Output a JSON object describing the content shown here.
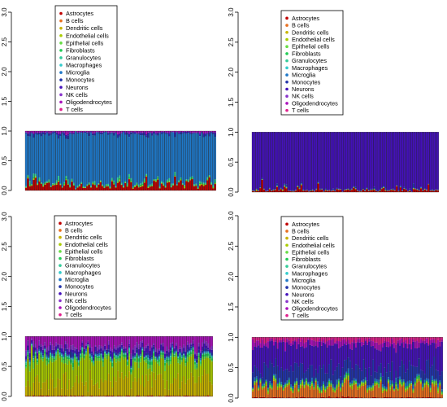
{
  "figure": {
    "cell_types": [
      "Astrocytes",
      "B cells",
      "Dendritic cells",
      "Endothelial cells",
      "Epithelial cells",
      "Fibroblasts",
      "Granulocytes",
      "Macrophages",
      "Microglia",
      "Monocytes",
      "Neurons",
      "NK cells",
      "Oligodendrocytes",
      "T cells"
    ],
    "colors": [
      "#C00000",
      "#E87020",
      "#C8B400",
      "#AACC00",
      "#66DD44",
      "#22CC55",
      "#33CC99",
      "#33CCCC",
      "#1F78C8",
      "#2233AA",
      "#4411BB",
      "#8833CC",
      "#AA11BB",
      "#E0208C"
    ],
    "y_ticks": [
      "0.0",
      "0.5",
      "1.0",
      "1.5",
      "2.0",
      "2.5",
      "3.0"
    ]
  },
  "chart_data": [
    {
      "type": "bar",
      "stacked": true,
      "n_bars": 100,
      "ylim": [
        0,
        3
      ],
      "y_ticks": [
        0,
        0.5,
        1.0,
        1.5,
        2.0,
        2.5,
        3.0
      ],
      "legend": "top-center",
      "series_mean_fractions": {
        "Astrocytes": 0.09,
        "Endothelial cells": 0.01,
        "Fibroblasts": 0.01,
        "Granulocytes": 0.02,
        "Microglia": 0.82,
        "Monocytes": 0.02,
        "Neurons": 0.01,
        "Oligodendrocytes": 0.02
      }
    },
    {
      "type": "bar",
      "stacked": true,
      "n_bars": 100,
      "ylim": [
        0,
        3
      ],
      "y_ticks": [
        0,
        0.5,
        1.0,
        1.5,
        2.0,
        2.5,
        3.0
      ],
      "legend": "top-center",
      "series_mean_fractions": {
        "Astrocytes": 0.03,
        "Endothelial cells": 0.005,
        "Microglia": 0.005,
        "Monocytes": 0.01,
        "Neurons": 0.95
      }
    },
    {
      "type": "bar",
      "stacked": true,
      "n_bars": 100,
      "ylim": [
        0,
        3
      ],
      "y_ticks": [
        0,
        0.5,
        1.0,
        1.5,
        2.0,
        2.5,
        3.0
      ],
      "legend": "top-center",
      "series_mean_fractions": {
        "Astrocytes": 0.01,
        "Dendritic cells": 0.27,
        "Endothelial cells": 0.3,
        "Epithelial cells": 0.05,
        "Fibroblasts": 0.03,
        "Granulocytes": 0.02,
        "Macrophages": 0.01,
        "Microglia": 0.02,
        "Monocytes": 0.03,
        "Neurons": 0.06,
        "NK cells": 0.05,
        "Oligodendrocytes": 0.15
      }
    },
    {
      "type": "bar",
      "stacked": true,
      "n_bars": 100,
      "ylim": [
        0,
        3
      ],
      "y_ticks": [
        0,
        0.5,
        1.0,
        1.5,
        2.0,
        2.5,
        3.0
      ],
      "legend": "top-center",
      "series_mean_fractions": {
        "Astrocytes": 0.01,
        "B cells": 0.15,
        "Endothelial cells": 0.03,
        "Epithelial cells": 0.02,
        "Fibroblasts": 0.02,
        "Microglia": 0.04,
        "Monocytes": 0.22,
        "Neurons": 0.38,
        "Oligodendrocytes": 0.07,
        "T cells": 0.06
      }
    }
  ]
}
